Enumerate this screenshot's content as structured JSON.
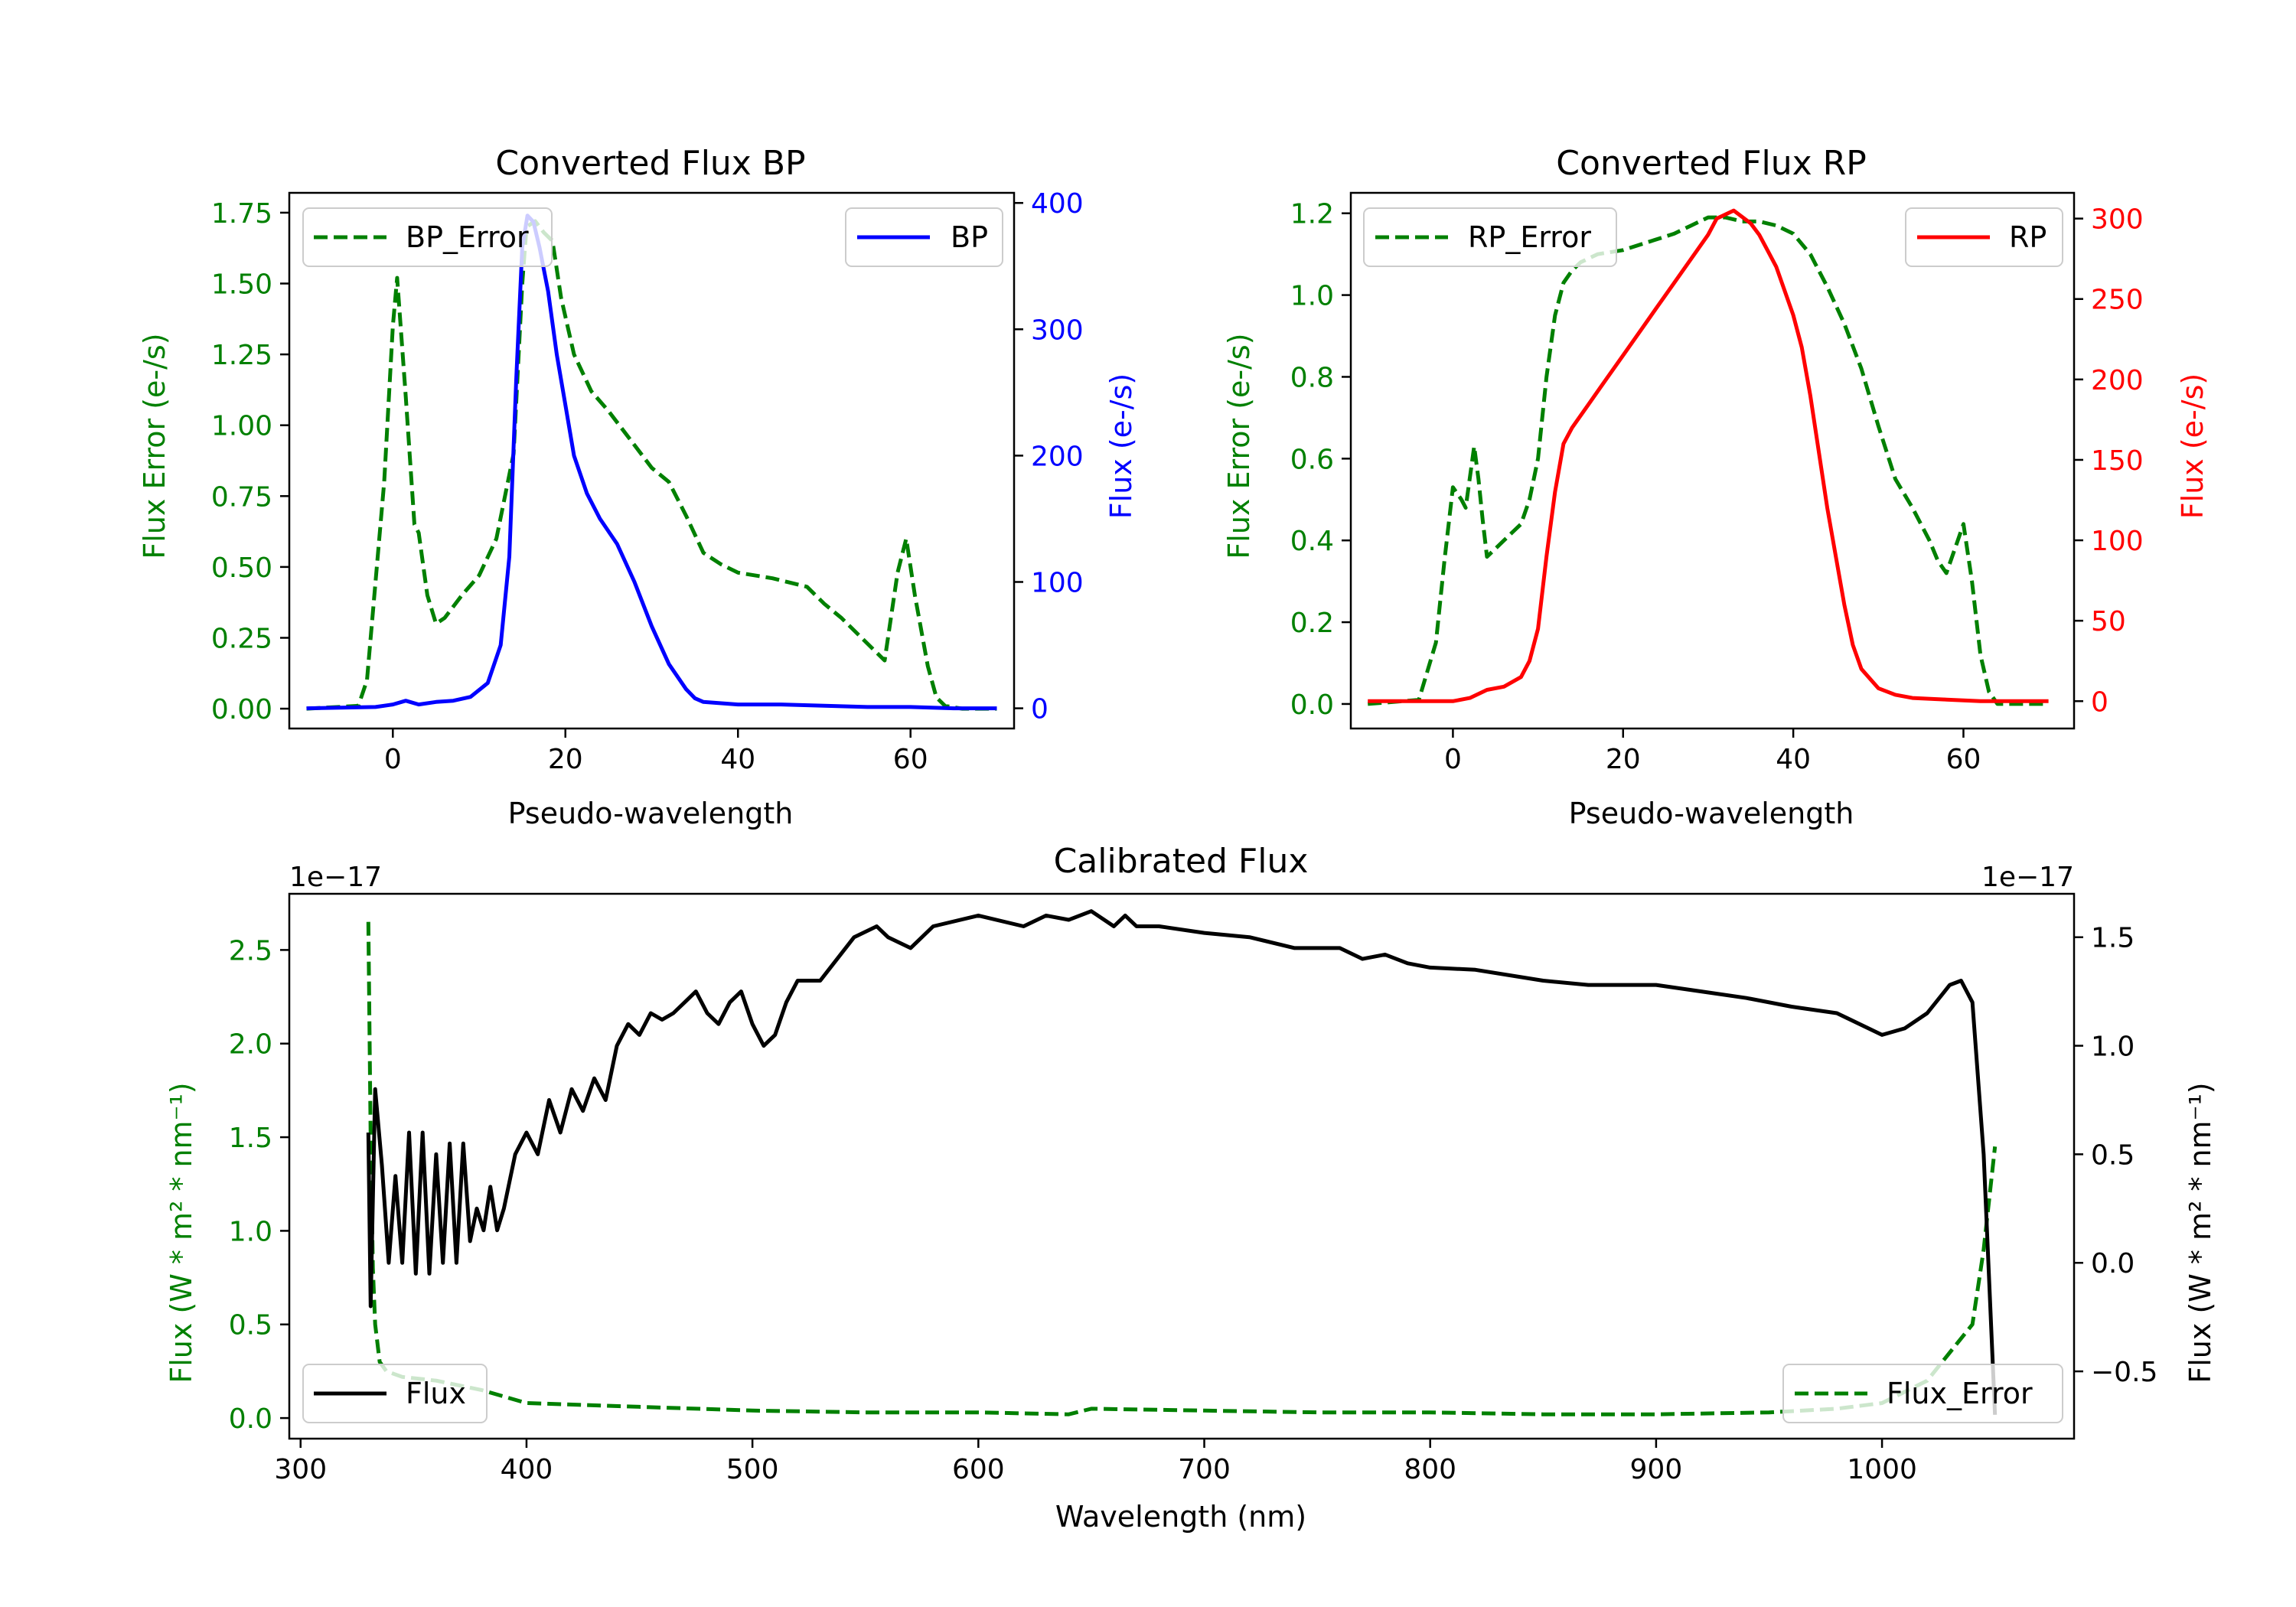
{
  "colors": {
    "green": "#008000",
    "blue": "#0000ff",
    "red": "#ff0000",
    "black": "#000000"
  },
  "chart_data": [
    {
      "type": "line",
      "title": "Converted Flux BP",
      "xlabel": "Pseudo-wavelength",
      "ylabel_left": "Flux Error (e-/s)",
      "ylabel_right": "Flux (e-/s)",
      "xlim": [
        -12,
        72
      ],
      "ylim_left": [
        -0.07,
        1.82
      ],
      "ylim_right": [
        -16,
        408
      ],
      "xticks": [
        0,
        20,
        40,
        60
      ],
      "yticks_left": [
        "0.00",
        "0.25",
        "0.50",
        "0.75",
        "1.00",
        "1.25",
        "1.50",
        "1.75"
      ],
      "yticks_right": [
        "0",
        "100",
        "200",
        "300",
        "400"
      ],
      "legend_left": {
        "position": "top-left",
        "label": "BP_Error"
      },
      "legend_right": {
        "position": "top-right",
        "label": "BP"
      },
      "series": [
        {
          "name": "BP_Error",
          "axis": "left",
          "color": "#008000",
          "dashed": true,
          "x": [
            -10,
            -4,
            -3,
            -1,
            0,
            0.5,
            1.5,
            2.5,
            3,
            4,
            5,
            6,
            8,
            10,
            12,
            14,
            15,
            15.5,
            16.5,
            17.5,
            18.5,
            19.5,
            21,
            23,
            25,
            28,
            30,
            32,
            34,
            36,
            38,
            40,
            44,
            48,
            50,
            52,
            56,
            57,
            58.5,
            59.5,
            60.5,
            62,
            63,
            64,
            66,
            70
          ],
          "y": [
            0,
            0.01,
            0.1,
            0.8,
            1.35,
            1.52,
            1.1,
            0.65,
            0.62,
            0.4,
            0.3,
            0.32,
            0.4,
            0.47,
            0.6,
            0.9,
            1.5,
            1.7,
            1.72,
            1.68,
            1.65,
            1.45,
            1.25,
            1.12,
            1.05,
            0.93,
            0.85,
            0.8,
            0.68,
            0.55,
            0.51,
            0.48,
            0.46,
            0.43,
            0.37,
            0.32,
            0.2,
            0.17,
            0.48,
            0.6,
            0.4,
            0.15,
            0.04,
            0.01,
            0,
            0
          ]
        },
        {
          "name": "BP",
          "axis": "right",
          "color": "#0000ff",
          "dashed": false,
          "x": [
            -10,
            -2,
            0,
            1.5,
            3,
            5,
            7,
            9,
            11,
            12.5,
            13.5,
            14.3,
            15,
            15.6,
            16.3,
            17,
            18,
            19,
            20,
            21,
            22.5,
            24,
            26,
            28,
            30,
            32,
            34,
            35,
            36,
            40,
            45,
            50,
            55,
            60,
            65,
            70
          ],
          "y": [
            0,
            1,
            3,
            6,
            3,
            5,
            6,
            9,
            20,
            50,
            120,
            260,
            365,
            390,
            385,
            365,
            330,
            280,
            240,
            200,
            170,
            150,
            130,
            100,
            65,
            35,
            15,
            8,
            5,
            3,
            3,
            2,
            1,
            1,
            0,
            0
          ]
        }
      ]
    },
    {
      "type": "line",
      "title": "Converted Flux RP",
      "xlabel": "Pseudo-wavelength",
      "ylabel_left": "Flux Error (e-/s)",
      "ylabel_right": "Flux (e-/s)",
      "xlim": [
        -12,
        73
      ],
      "ylim_left": [
        -0.06,
        1.25
      ],
      "ylim_right": [
        -17,
        316
      ],
      "xticks": [
        0,
        20,
        40,
        60
      ],
      "yticks_left": [
        "0.0",
        "0.2",
        "0.4",
        "0.6",
        "0.8",
        "1.0",
        "1.2"
      ],
      "yticks_right": [
        "0",
        "50",
        "100",
        "150",
        "200",
        "250",
        "300"
      ],
      "legend_left": {
        "position": "top-left",
        "label": "RP_Error"
      },
      "legend_right": {
        "position": "top-right",
        "label": "RP"
      },
      "series": [
        {
          "name": "RP_Error",
          "axis": "left",
          "color": "#008000",
          "dashed": true,
          "x": [
            -10,
            -4,
            -2,
            -1,
            0,
            1,
            1.5,
            2.5,
            3,
            3.5,
            4,
            5,
            6,
            7,
            8,
            9,
            10,
            11,
            12,
            13,
            14,
            15,
            17,
            20,
            23,
            26,
            28,
            29,
            30,
            32,
            34,
            36,
            38,
            40,
            42,
            44,
            46,
            48,
            50,
            52,
            54,
            55,
            56,
            57,
            58,
            59,
            60,
            61,
            62,
            63,
            64,
            70
          ],
          "y": [
            0,
            0.01,
            0.15,
            0.35,
            0.53,
            0.5,
            0.48,
            0.63,
            0.55,
            0.45,
            0.36,
            0.38,
            0.4,
            0.42,
            0.44,
            0.5,
            0.6,
            0.8,
            0.95,
            1.03,
            1.06,
            1.08,
            1.1,
            1.11,
            1.13,
            1.15,
            1.17,
            1.18,
            1.19,
            1.19,
            1.18,
            1.18,
            1.17,
            1.15,
            1.1,
            1.02,
            0.93,
            0.82,
            0.68,
            0.55,
            0.48,
            0.44,
            0.4,
            0.35,
            0.32,
            0.38,
            0.44,
            0.3,
            0.12,
            0.03,
            0,
            0
          ]
        },
        {
          "name": "RP",
          "axis": "right",
          "color": "#ff0000",
          "dashed": false,
          "x": [
            -10,
            -2,
            0,
            2,
            4,
            6,
            8,
            9,
            10,
            11,
            12,
            13,
            14,
            16,
            18,
            20,
            22,
            24,
            26,
            28,
            30,
            31,
            33,
            35,
            36,
            37,
            38,
            40,
            41,
            42,
            44,
            46,
            47,
            48,
            50,
            52,
            54,
            58,
            62,
            66,
            70
          ],
          "y": [
            0,
            0,
            0,
            2,
            7,
            9,
            15,
            25,
            45,
            90,
            130,
            160,
            170,
            185,
            200,
            215,
            230,
            245,
            260,
            275,
            290,
            300,
            305,
            297,
            290,
            280,
            270,
            240,
            220,
            190,
            120,
            60,
            35,
            20,
            8,
            4,
            2,
            1,
            0,
            0,
            0
          ]
        }
      ]
    },
    {
      "type": "line",
      "title": "Calibrated Flux",
      "xlabel": "Wavelength (nm)",
      "ylabel_left": "Flux (W * m² * nm⁻¹)",
      "ylabel_right": "Flux (W * m² * nm⁻¹)",
      "left_offset": "1e−17",
      "right_offset": "1e−17",
      "xlim": [
        295,
        1085
      ],
      "ylim_left": [
        -0.11,
        2.8
      ],
      "ylim_right": [
        -0.81,
        1.7
      ],
      "xticks": [
        300,
        400,
        500,
        600,
        700,
        800,
        900,
        1000
      ],
      "yticks_left": [
        "0.0",
        "0.5",
        "1.0",
        "1.5",
        "2.0",
        "2.5"
      ],
      "yticks_right": [
        "−0.5",
        "0.0",
        "0.5",
        "1.0",
        "1.5"
      ],
      "legend_left": {
        "position": "lower-left",
        "label": "Flux"
      },
      "legend_right": {
        "position": "lower-right",
        "label": "Flux_Error"
      },
      "series": [
        {
          "name": "Flux_Error",
          "axis": "left",
          "color": "#008000",
          "dashed": true,
          "x": [
            330,
            331,
            332,
            333,
            335,
            338,
            345,
            360,
            380,
            400,
            450,
            500,
            550,
            600,
            640,
            650,
            700,
            750,
            800,
            850,
            900,
            950,
            980,
            1000,
            1020,
            1030,
            1040,
            1045,
            1050
          ],
          "y": [
            2.65,
            1.5,
            0.8,
            0.5,
            0.3,
            0.25,
            0.22,
            0.2,
            0.15,
            0.08,
            0.06,
            0.04,
            0.03,
            0.03,
            0.02,
            0.05,
            0.04,
            0.03,
            0.03,
            0.02,
            0.02,
            0.03,
            0.05,
            0.08,
            0.2,
            0.35,
            0.5,
            0.9,
            1.45
          ]
        },
        {
          "name": "Flux",
          "axis": "right",
          "color": "#000000",
          "dashed": false,
          "x": [
            330,
            331,
            333,
            336,
            339,
            342,
            345,
            348,
            351,
            354,
            357,
            360,
            363,
            366,
            369,
            372,
            375,
            378,
            381,
            384,
            387,
            390,
            395,
            400,
            405,
            410,
            415,
            420,
            425,
            430,
            435,
            440,
            445,
            450,
            455,
            460,
            465,
            470,
            475,
            480,
            485,
            490,
            495,
            500,
            505,
            510,
            515,
            520,
            530,
            545,
            555,
            560,
            570,
            580,
            600,
            620,
            630,
            640,
            650,
            660,
            665,
            670,
            680,
            700,
            720,
            740,
            760,
            770,
            780,
            790,
            800,
            820,
            850,
            870,
            900,
            920,
            940,
            960,
            980,
            1000,
            1010,
            1020,
            1030,
            1035,
            1040,
            1045,
            1050
          ],
          "y": [
            0.6,
            -0.2,
            0.8,
            0.45,
            0.0,
            0.4,
            0.0,
            0.6,
            -0.05,
            0.6,
            -0.05,
            0.5,
            0.0,
            0.55,
            0.0,
            0.55,
            0.1,
            0.25,
            0.15,
            0.35,
            0.15,
            0.25,
            0.5,
            0.6,
            0.5,
            0.75,
            0.6,
            0.8,
            0.7,
            0.85,
            0.75,
            1.0,
            1.1,
            1.05,
            1.15,
            1.12,
            1.15,
            1.2,
            1.25,
            1.15,
            1.1,
            1.2,
            1.25,
            1.1,
            1.0,
            1.05,
            1.2,
            1.3,
            1.3,
            1.5,
            1.55,
            1.5,
            1.45,
            1.55,
            1.6,
            1.55,
            1.6,
            1.58,
            1.62,
            1.55,
            1.6,
            1.55,
            1.55,
            1.52,
            1.5,
            1.45,
            1.45,
            1.4,
            1.42,
            1.38,
            1.36,
            1.35,
            1.3,
            1.28,
            1.28,
            1.25,
            1.22,
            1.18,
            1.15,
            1.05,
            1.08,
            1.15,
            1.28,
            1.3,
            1.2,
            0.5,
            -0.7
          ]
        }
      ]
    }
  ]
}
